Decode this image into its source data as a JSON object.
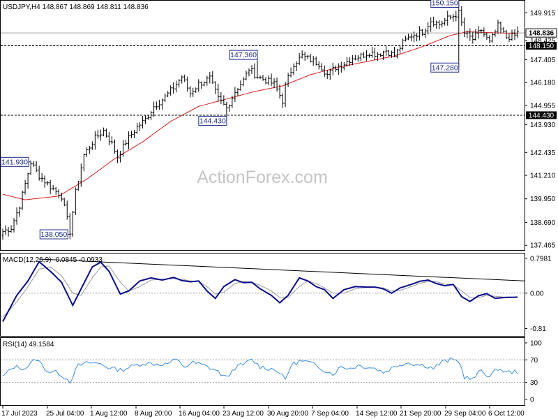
{
  "chart_data": [
    {
      "panel": "price",
      "type": "ohlc",
      "title": "USDJPY,H4  148.867 148.869 148.811 148.836",
      "watermark": "ActionForex.com",
      "yticks": [
        "149.915",
        "148.425",
        "147.405",
        "146.180",
        "144.955",
        "143.930",
        "142.435",
        "141.210",
        "139.950",
        "138.690",
        "137.465"
      ],
      "ylim": [
        137.36,
        150.45
      ],
      "xticks": [
        "17 Jul 2023",
        "25 Jul 04:00",
        "1 Aug 12:00",
        "8 Aug 20:00",
        "16 Aug 04:00",
        "23 Aug 12:00",
        "30 Aug 20:00",
        "7 Sep 04:00",
        "14 Sep 12:00",
        "21 Sep 20:00",
        "29 Sep 04:00",
        "6 Oct 12:00"
      ],
      "current_price": "148.836",
      "levels": [
        {
          "label": "148.150",
          "value": 148.15
        },
        {
          "label": "144.430",
          "value": 144.43
        }
      ],
      "annotations": [
        {
          "label": "150.150",
          "value": 150.15,
          "bar": 163
        },
        {
          "label": "147.360",
          "value": 147.36,
          "bar": 91
        },
        {
          "label": "147.280",
          "value": 147.28,
          "bar": 163
        },
        {
          "label": "144.430",
          "value": 144.43,
          "bar": 80
        },
        {
          "label": "141.930",
          "value": 141.93,
          "bar": 10
        },
        {
          "label": "138.050",
          "value": 138.05,
          "bar": 24
        }
      ],
      "waypoints": [
        [
          0,
          138.2
        ],
        [
          3,
          138.4
        ],
        [
          6,
          139.6
        ],
        [
          10,
          141.9
        ],
        [
          13,
          141.2
        ],
        [
          17,
          140.6
        ],
        [
          21,
          140.1
        ],
        [
          24,
          138.2
        ],
        [
          26,
          140.3
        ],
        [
          29,
          142.3
        ],
        [
          33,
          143.2
        ],
        [
          36,
          143.6
        ],
        [
          39,
          142.9
        ],
        [
          41,
          142.2
        ],
        [
          44,
          143.0
        ],
        [
          48,
          143.8
        ],
        [
          51,
          144.2
        ],
        [
          54,
          144.9
        ],
        [
          58,
          145.4
        ],
        [
          61,
          145.9
        ],
        [
          64,
          146.5
        ],
        [
          67,
          145.6
        ],
        [
          70,
          146.1
        ],
        [
          74,
          146.4
        ],
        [
          77,
          145.3
        ],
        [
          80,
          144.8
        ],
        [
          83,
          145.7
        ],
        [
          86,
          146.3
        ],
        [
          88,
          146.9
        ],
        [
          91,
          146.5
        ],
        [
          94,
          146.3
        ],
        [
          97,
          146.1
        ],
        [
          100,
          145.2
        ],
        [
          101,
          146.0
        ],
        [
          104,
          147.2
        ],
        [
          107,
          147.6
        ],
        [
          110,
          147.4
        ],
        [
          113,
          147.2
        ],
        [
          116,
          146.6
        ],
        [
          119,
          147.0
        ],
        [
          122,
          147.2
        ],
        [
          125,
          147.5
        ],
        [
          128,
          147.6
        ],
        [
          131,
          147.8
        ],
        [
          134,
          147.7
        ],
        [
          137,
          147.9
        ],
        [
          140,
          147.6
        ],
        [
          143,
          148.3
        ],
        [
          146,
          148.7
        ],
        [
          150,
          148.9
        ],
        [
          153,
          149.5
        ],
        [
          156,
          149.3
        ],
        [
          159,
          149.6
        ],
        [
          163,
          149.9
        ],
        [
          165,
          148.8
        ],
        [
          168,
          148.5
        ],
        [
          171,
          149.0
        ],
        [
          174,
          148.3
        ],
        [
          177,
          149.2
        ],
        [
          180,
          148.6
        ],
        [
          183,
          148.7
        ],
        [
          184,
          148.84
        ]
      ],
      "ma_anchors": [
        [
          0,
          140.2
        ],
        [
          8,
          139.9
        ],
        [
          20,
          140.1
        ],
        [
          30,
          141.0
        ],
        [
          40,
          142.1
        ],
        [
          50,
          143.0
        ],
        [
          60,
          144.1
        ],
        [
          70,
          144.9
        ],
        [
          80,
          145.3
        ],
        [
          90,
          145.7
        ],
        [
          100,
          146.0
        ],
        [
          110,
          146.6
        ],
        [
          120,
          147.0
        ],
        [
          130,
          147.3
        ],
        [
          140,
          147.6
        ],
        [
          150,
          148.1
        ],
        [
          160,
          148.7
        ],
        [
          166,
          148.9
        ],
        [
          184,
          148.8
        ]
      ]
    },
    {
      "panel": "macd",
      "type": "line",
      "title": "MACD(12,26,9) -0.0845 -0.0933",
      "yticks": [
        "0.7981",
        "0.00",
        "-0.81"
      ],
      "ylim": [
        -0.93,
        0.86
      ],
      "series": [
        {
          "name": "MACD",
          "color": "#0a0a8c",
          "waypoints": [
            [
              0,
              -0.65
            ],
            [
              5,
              -0.05
            ],
            [
              9,
              0.28
            ],
            [
              13,
              0.72
            ],
            [
              17,
              0.5
            ],
            [
              21,
              0.25
            ],
            [
              25,
              -0.28
            ],
            [
              28,
              0.1
            ],
            [
              32,
              0.6
            ],
            [
              35,
              0.71
            ],
            [
              38,
              0.5
            ],
            [
              42,
              -0.02
            ],
            [
              45,
              0.05
            ],
            [
              49,
              0.28
            ],
            [
              53,
              0.35
            ],
            [
              57,
              0.3
            ],
            [
              61,
              0.36
            ],
            [
              64,
              0.29
            ],
            [
              67,
              0.26
            ],
            [
              70,
              0.28
            ],
            [
              73,
              0.05
            ],
            [
              76,
              -0.12
            ],
            [
              79,
              0.15
            ],
            [
              83,
              0.31
            ],
            [
              86,
              0.24
            ],
            [
              89,
              0.25
            ],
            [
              92,
              0.1
            ],
            [
              96,
              -0.05
            ],
            [
              99,
              -0.22
            ],
            [
              102,
              -0.05
            ],
            [
              106,
              0.35
            ],
            [
              109,
              0.28
            ],
            [
              112,
              0.15
            ],
            [
              115,
              0.08
            ],
            [
              118,
              -0.12
            ],
            [
              122,
              0.08
            ],
            [
              126,
              0.15
            ],
            [
              130,
              0.14
            ],
            [
              133,
              0.14
            ],
            [
              136,
              0.1
            ],
            [
              139,
              0.0
            ],
            [
              142,
              0.12
            ],
            [
              146,
              0.2
            ],
            [
              149,
              0.27
            ],
            [
              152,
              0.3
            ],
            [
              155,
              0.22
            ],
            [
              158,
              0.17
            ],
            [
              161,
              0.2
            ],
            [
              164,
              -0.08
            ],
            [
              167,
              -0.19
            ],
            [
              170,
              -0.06
            ],
            [
              173,
              -0.01
            ],
            [
              176,
              -0.12
            ],
            [
              179,
              -0.1
            ],
            [
              184,
              -0.09
            ]
          ]
        },
        {
          "name": "Signal",
          "color": "#9a9a9a",
          "waypoints": [
            [
              0,
              -0.55
            ],
            [
              5,
              -0.2
            ],
            [
              9,
              0.15
            ],
            [
              13,
              0.55
            ],
            [
              17,
              0.6
            ],
            [
              21,
              0.4
            ],
            [
              25,
              0.0
            ],
            [
              28,
              -0.05
            ],
            [
              32,
              0.35
            ],
            [
              35,
              0.6
            ],
            [
              38,
              0.62
            ],
            [
              42,
              0.25
            ],
            [
              45,
              0.05
            ],
            [
              49,
              0.15
            ],
            [
              53,
              0.3
            ],
            [
              57,
              0.32
            ],
            [
              61,
              0.33
            ],
            [
              64,
              0.32
            ],
            [
              67,
              0.28
            ],
            [
              70,
              0.27
            ],
            [
              73,
              0.15
            ],
            [
              76,
              -0.02
            ],
            [
              79,
              0.02
            ],
            [
              83,
              0.22
            ],
            [
              86,
              0.27
            ],
            [
              89,
              0.25
            ],
            [
              92,
              0.18
            ],
            [
              96,
              0.05
            ],
            [
              99,
              -0.1
            ],
            [
              102,
              -0.1
            ],
            [
              106,
              0.15
            ],
            [
              109,
              0.28
            ],
            [
              112,
              0.22
            ],
            [
              115,
              0.12
            ],
            [
              118,
              0.0
            ],
            [
              122,
              0.0
            ],
            [
              126,
              0.1
            ],
            [
              130,
              0.13
            ],
            [
              133,
              0.14
            ],
            [
              136,
              0.12
            ],
            [
              139,
              0.05
            ],
            [
              142,
              0.06
            ],
            [
              146,
              0.15
            ],
            [
              149,
              0.22
            ],
            [
              152,
              0.27
            ],
            [
              155,
              0.26
            ],
            [
              158,
              0.21
            ],
            [
              161,
              0.19
            ],
            [
              164,
              0.05
            ],
            [
              167,
              -0.1
            ],
            [
              170,
              -0.1
            ],
            [
              173,
              -0.05
            ],
            [
              176,
              -0.07
            ],
            [
              179,
              -0.09
            ],
            [
              184,
              -0.09
            ]
          ]
        }
      ],
      "trendline": [
        [
          13,
          0.78
        ],
        [
          184,
          0.28
        ]
      ]
    },
    {
      "panel": "rsi",
      "type": "line",
      "title": "RSI(14) 49.1584",
      "yticks": [
        "100",
        "70",
        "30",
        "0"
      ],
      "ylim": [
        0,
        100
      ],
      "levels": [
        70,
        30
      ],
      "series": [
        {
          "name": "RSI",
          "color": "#3c8cdc",
          "waypoints": [
            [
              0,
              40
            ],
            [
              4,
              58
            ],
            [
              8,
              55
            ],
            [
              12,
              72
            ],
            [
              16,
              50
            ],
            [
              20,
              47
            ],
            [
              24,
              32
            ],
            [
              27,
              60
            ],
            [
              31,
              65
            ],
            [
              35,
              63
            ],
            [
              38,
              56
            ],
            [
              42,
              52
            ],
            [
              46,
              58
            ],
            [
              50,
              64
            ],
            [
              54,
              63
            ],
            [
              58,
              62
            ],
            [
              62,
              70
            ],
            [
              65,
              58
            ],
            [
              68,
              65
            ],
            [
              72,
              60
            ],
            [
              76,
              52
            ],
            [
              80,
              38
            ],
            [
              83,
              56
            ],
            [
              86,
              62
            ],
            [
              89,
              70
            ],
            [
              92,
              58
            ],
            [
              95,
              55
            ],
            [
              98,
              52
            ],
            [
              101,
              35
            ],
            [
              103,
              60
            ],
            [
              106,
              68
            ],
            [
              109,
              66
            ],
            [
              112,
              60
            ],
            [
              115,
              52
            ],
            [
              118,
              45
            ],
            [
              121,
              58
            ],
            [
              124,
              55
            ],
            [
              127,
              60
            ],
            [
              130,
              58
            ],
            [
              133,
              55
            ],
            [
              136,
              48
            ],
            [
              139,
              55
            ],
            [
              142,
              62
            ],
            [
              145,
              65
            ],
            [
              148,
              62
            ],
            [
              151,
              60
            ],
            [
              154,
              55
            ],
            [
              157,
              66
            ],
            [
              160,
              70
            ],
            [
              163,
              68
            ],
            [
              165,
              40
            ],
            [
              168,
              35
            ],
            [
              171,
              52
            ],
            [
              174,
              40
            ],
            [
              177,
              55
            ],
            [
              180,
              48
            ],
            [
              184,
              49
            ]
          ]
        }
      ]
    }
  ]
}
